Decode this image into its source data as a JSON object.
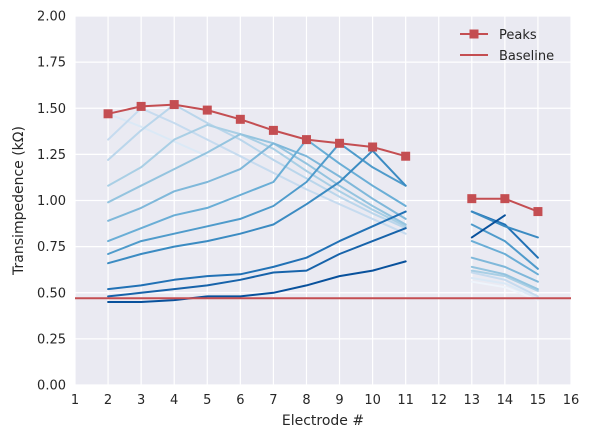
{
  "chart_data": {
    "type": "line",
    "title": "",
    "xlabel": "Electrode #",
    "ylabel": "Transimpedence (kΩ)",
    "xlim": [
      1,
      16
    ],
    "ylim": [
      0,
      2.0
    ],
    "xticks": [
      1,
      2,
      3,
      4,
      5,
      6,
      7,
      8,
      9,
      10,
      11,
      12,
      13,
      14,
      15,
      16
    ],
    "yticks": [
      "0.00",
      "0.25",
      "0.50",
      "0.75",
      "1.00",
      "1.25",
      "1.50",
      "1.75",
      "2.00"
    ],
    "grid": true,
    "legend_position": "top-right",
    "colors": {
      "peaks": "#c44e52",
      "baseline": "#c44e52",
      "background": "#eaeaf2",
      "grid": "#ffffff"
    },
    "peaks": {
      "name": "Peaks",
      "segments": [
        {
          "x": [
            2,
            3,
            4,
            5,
            6,
            7,
            8,
            9,
            10,
            11
          ],
          "y": [
            1.47,
            1.51,
            1.52,
            1.49,
            1.44,
            1.38,
            1.33,
            1.31,
            1.29,
            1.24
          ]
        },
        {
          "x": [
            13,
            14,
            15
          ],
          "y": [
            1.01,
            1.01,
            0.94
          ]
        }
      ]
    },
    "baseline": {
      "name": "Baseline",
      "y": 0.47
    },
    "stim_series": [
      {
        "stim": 2,
        "color": "#dbe9f6",
        "segments": [
          {
            "x": [
              2,
              3,
              4,
              5
            ],
            "y": [
              1.47,
              1.4,
              1.32,
              1.24
            ]
          }
        ]
      },
      {
        "stim": 3,
        "color": "#c6dbef",
        "segments": [
          {
            "x": [
              2,
              3,
              4,
              5,
              6,
              7,
              8,
              9,
              10,
              11
            ],
            "y": [
              1.33,
              1.5,
              1.42,
              1.33,
              1.24,
              1.15,
              1.06,
              0.98,
              0.9,
              0.82
            ]
          }
        ]
      },
      {
        "stim": 4,
        "color": "#bad6eb",
        "segments": [
          {
            "x": [
              2,
              3,
              4,
              5,
              6,
              7,
              8,
              9,
              10,
              11
            ],
            "y": [
              1.22,
              1.38,
              1.52,
              1.42,
              1.33,
              1.22,
              1.12,
              1.02,
              0.93,
              0.85
            ]
          }
        ]
      },
      {
        "stim": 5,
        "color": "#a9cfe5",
        "segments": [
          {
            "x": [
              2,
              3,
              4,
              5,
              6,
              7,
              8,
              9,
              10,
              11
            ],
            "y": [
              1.08,
              1.18,
              1.33,
              1.41,
              1.36,
              1.28,
              1.16,
              1.05,
              0.95,
              0.86
            ]
          }
        ]
      },
      {
        "stim": 6,
        "color": "#94c4df",
        "segments": [
          {
            "x": [
              2,
              3,
              4,
              5,
              6,
              7,
              8,
              9,
              10,
              11
            ],
            "y": [
              0.99,
              1.08,
              1.17,
              1.26,
              1.36,
              1.31,
              1.2,
              1.08,
              0.97,
              0.87
            ]
          }
        ]
      },
      {
        "stim": 7,
        "color": "#7fb8da",
        "segments": [
          {
            "x": [
              2,
              3,
              4,
              5,
              6,
              7,
              8,
              9,
              10,
              11
            ],
            "y": [
              0.89,
              0.96,
              1.05,
              1.1,
              1.17,
              1.31,
              1.24,
              1.13,
              1.01,
              0.9
            ]
          }
        ]
      },
      {
        "stim": 8,
        "color": "#6aaed6",
        "segments": [
          {
            "x": [
              2,
              3,
              4,
              5,
              6,
              7,
              8,
              9,
              10,
              11
            ],
            "y": [
              0.78,
              0.85,
              0.92,
              0.96,
              1.03,
              1.1,
              1.33,
              1.2,
              1.08,
              0.97
            ]
          }
        ]
      },
      {
        "stim": 9,
        "color": "#4f9bcb",
        "segments": [
          {
            "x": [
              2,
              3,
              4,
              5,
              6,
              7,
              8,
              9,
              10,
              11
            ],
            "y": [
              0.71,
              0.78,
              0.82,
              0.86,
              0.9,
              0.97,
              1.1,
              1.31,
              1.18,
              1.08
            ]
          }
        ]
      },
      {
        "stim": 10,
        "color": "#3b8bc2",
        "segments": [
          {
            "x": [
              2,
              3,
              4,
              5,
              6,
              7,
              8,
              9,
              10,
              11
            ],
            "y": [
              0.66,
              0.71,
              0.75,
              0.78,
              0.82,
              0.87,
              0.98,
              1.1,
              1.27,
              1.08
            ]
          }
        ]
      },
      {
        "stim": 11,
        "color": "#2171b5",
        "segments": [
          {
            "x": [
              2,
              3,
              4,
              5,
              6,
              7,
              8,
              9,
              10,
              11
            ],
            "y": [
              0.52,
              0.54,
              0.57,
              0.59,
              0.6,
              0.64,
              0.69,
              0.78,
              0.86,
              0.94
            ]
          }
        ]
      },
      {
        "stim": 12,
        "color": "#1763aa",
        "segments": [
          {
            "x": [
              2,
              3,
              4,
              5,
              6,
              7,
              8,
              9,
              10,
              11
            ],
            "y": [
              0.48,
              0.5,
              0.52,
              0.54,
              0.57,
              0.61,
              0.62,
              0.71,
              0.78,
              0.85
            ]
          }
        ]
      },
      {
        "stim": 13,
        "color": "#08519c",
        "segments": [
          {
            "x": [
              2,
              3,
              4,
              5,
              6,
              7,
              8,
              9,
              10,
              11
            ],
            "y": [
              0.45,
              0.45,
              0.46,
              0.48,
              0.48,
              0.5,
              0.54,
              0.59,
              0.62,
              0.67
            ]
          }
        ]
      },
      {
        "stim": 14,
        "color": "#eef4fb",
        "segments": [
          {
            "x": [
              13,
              14,
              15
            ],
            "y": [
              0.56,
              0.53,
              0.46
            ]
          }
        ]
      },
      {
        "stim": 15,
        "color": "#dbe9f6",
        "segments": [
          {
            "x": [
              13,
              14,
              15
            ],
            "y": [
              0.58,
              0.55,
              0.47
            ]
          }
        ]
      },
      {
        "stim": 16,
        "color": "#c6dbef",
        "segments": [
          {
            "x": [
              13,
              14,
              15
            ],
            "y": [
              0.61,
              0.57,
              0.48
            ]
          }
        ]
      },
      {
        "stim": 17,
        "color": "#a9cfe5",
        "segments": [
          {
            "x": [
              13,
              14,
              15
            ],
            "y": [
              0.62,
              0.59,
              0.51
            ]
          }
        ]
      },
      {
        "stim": 18,
        "color": "#94c4df",
        "segments": [
          {
            "x": [
              13,
              14,
              15
            ],
            "y": [
              0.64,
              0.6,
              0.52
            ]
          }
        ]
      },
      {
        "stim": 19,
        "color": "#7fb8da",
        "segments": [
          {
            "x": [
              13,
              14,
              15
            ],
            "y": [
              0.69,
              0.64,
              0.56
            ]
          }
        ]
      },
      {
        "stim": 20,
        "color": "#6aaed6",
        "segments": [
          {
            "x": [
              13,
              14,
              15
            ],
            "y": [
              0.78,
              0.71,
              0.6
            ]
          }
        ]
      },
      {
        "stim": 21,
        "color": "#4f9bcb",
        "segments": [
          {
            "x": [
              13,
              14,
              15
            ],
            "y": [
              0.87,
              0.78,
              0.63
            ]
          }
        ]
      },
      {
        "stim": 22,
        "color": "#2171b5",
        "segments": [
          {
            "x": [
              13,
              14,
              15
            ],
            "y": [
              0.94,
              0.87,
              0.69
            ]
          }
        ]
      },
      {
        "stim": 23,
        "color": "#3b8bc2",
        "segments": [
          {
            "x": [
              13,
              14,
              15
            ],
            "y": [
              0.94,
              0.86,
              0.8
            ]
          }
        ]
      },
      {
        "stim": 24,
        "color": "#08519c",
        "segments": [
          {
            "x": [
              13,
              14
            ],
            "y": [
              0.8,
              0.92
            ]
          }
        ]
      }
    ]
  }
}
